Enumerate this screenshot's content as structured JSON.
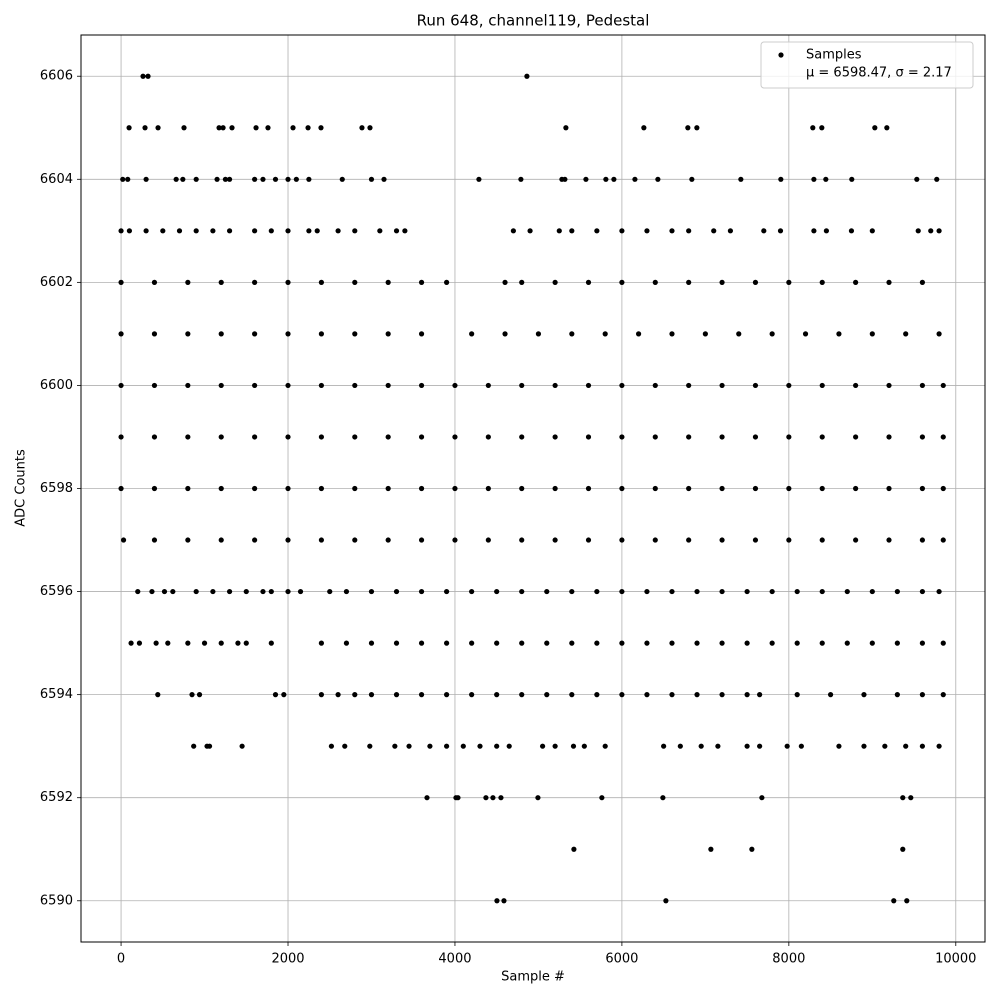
{
  "chart_data": {
    "type": "scatter",
    "title": "Run 648, channel119, Pedestal",
    "xlabel": "Sample #",
    "ylabel": "ADC Counts",
    "x": [
      263,
      323,
      4862,
      96,
      287,
      443,
      754,
      1174,
      1222,
      1329,
      1617,
      1760,
      2060,
      2240,
      2395,
      2886,
      2982,
      5329,
      6263,
      6790,
      6898,
      8287,
      8395,
      9030,
      9174,
      20,
      80,
      300,
      660,
      740,
      900,
      1150,
      1250,
      1300,
      1600,
      1700,
      1850,
      2000,
      2100,
      2250,
      2650,
      3000,
      3150,
      4287,
      4790,
      5281,
      5317,
      5569,
      5808,
      5904,
      6156,
      6431,
      6838,
      7425,
      7904,
      8300,
      8443,
      8754,
      9533,
      9772,
      0,
      100,
      300,
      500,
      700,
      900,
      1100,
      1300,
      1600,
      1800,
      2000,
      2250,
      2350,
      2600,
      2800,
      3100,
      3300,
      3400,
      4700,
      4900,
      5250,
      5400,
      5700,
      6000,
      6300,
      6600,
      6800,
      7100,
      7300,
      7700,
      7900,
      8300,
      8450,
      8750,
      9000,
      9550,
      9700,
      9800,
      0,
      400,
      800,
      1200,
      1600,
      2000,
      2400,
      2800,
      3200,
      3600,
      3900,
      4600,
      4800,
      5200,
      5600,
      6000,
      6400,
      6800,
      7200,
      7600,
      8000,
      8400,
      8800,
      9200,
      9600,
      0,
      400,
      800,
      1200,
      1600,
      2000,
      2400,
      2800,
      3200,
      3600,
      4200,
      4600,
      5000,
      5400,
      5800,
      6200,
      6600,
      7000,
      7400,
      7800,
      8200,
      8600,
      9000,
      9400,
      9800,
      0,
      400,
      800,
      1200,
      1600,
      2000,
      2400,
      2800,
      3200,
      3600,
      4000,
      4400,
      4800,
      5200,
      5600,
      6000,
      6400,
      6800,
      7200,
      7600,
      8000,
      8400,
      8800,
      9200,
      9600,
      9850,
      0,
      400,
      800,
      1200,
      1600,
      2000,
      2400,
      2800,
      3200,
      3600,
      4000,
      4400,
      4800,
      5200,
      5600,
      6000,
      6400,
      6800,
      7200,
      7600,
      8000,
      8400,
      8800,
      9200,
      9600,
      9850,
      0,
      400,
      800,
      1200,
      1600,
      2000,
      2400,
      2800,
      3200,
      3600,
      4000,
      4400,
      4800,
      5200,
      5600,
      6000,
      6400,
      6800,
      7200,
      7600,
      8000,
      8400,
      8800,
      9200,
      9600,
      9850,
      30,
      400,
      800,
      1200,
      1600,
      2000,
      2400,
      2800,
      3200,
      3600,
      4000,
      4400,
      4800,
      5200,
      5600,
      6000,
      6400,
      6800,
      7200,
      7600,
      8000,
      8400,
      8800,
      9200,
      9600,
      9850,
      200,
      370,
      520,
      620,
      900,
      1100,
      1300,
      1500,
      1700,
      1800,
      2000,
      2150,
      2500,
      2700,
      3000,
      3300,
      3600,
      3900,
      4200,
      4500,
      4800,
      5100,
      5400,
      5700,
      6000,
      6300,
      6600,
      6900,
      7200,
      7500,
      7800,
      8100,
      8400,
      8700,
      9000,
      9300,
      9600,
      9800,
      120,
      220,
      420,
      560,
      800,
      1000,
      1200,
      1400,
      1500,
      1800,
      2400,
      2700,
      3000,
      3300,
      3600,
      3900,
      4200,
      4500,
      4800,
      5100,
      5400,
      5700,
      6000,
      6300,
      6600,
      6900,
      7200,
      7500,
      7800,
      8100,
      8400,
      8700,
      9000,
      9300,
      9600,
      9850,
      440,
      850,
      940,
      1850,
      1950,
      2400,
      2600,
      2800,
      3000,
      3300,
      3600,
      3900,
      4200,
      4500,
      4800,
      5100,
      5400,
      5700,
      6000,
      6300,
      6600,
      6900,
      7200,
      7500,
      7650,
      8100,
      8500,
      8900,
      9300,
      9600,
      9850,
      870,
      1030,
      1060,
      1450,
      2520,
      2680,
      2980,
      3280,
      3450,
      3700,
      3900,
      4100,
      4300,
      4500,
      4650,
      5050,
      5200,
      5420,
      5550,
      5800,
      6500,
      6700,
      6950,
      7150,
      7500,
      7650,
      7980,
      8150,
      8600,
      8900,
      9150,
      9400,
      9600,
      9800,
      3665,
      4012,
      4036,
      4371,
      4455,
      4551,
      4994,
      5760,
      6491,
      7677,
      9365,
      9461,
      5425,
      7066,
      7557,
      9365,
      4503,
      4587,
      6527,
      9257,
      9413
    ],
    "series": [
      {
        "name": "Samples",
        "color": "#000000",
        "values": [
          6606,
          6606,
          6606,
          6605,
          6605,
          6605,
          6605,
          6605,
          6605,
          6605,
          6605,
          6605,
          6605,
          6605,
          6605,
          6605,
          6605,
          6605,
          6605,
          6605,
          6605,
          6605,
          6605,
          6605,
          6605,
          6604,
          6604,
          6604,
          6604,
          6604,
          6604,
          6604,
          6604,
          6604,
          6604,
          6604,
          6604,
          6604,
          6604,
          6604,
          6604,
          6604,
          6604,
          6604,
          6604,
          6604,
          6604,
          6604,
          6604,
          6604,
          6604,
          6604,
          6604,
          6604,
          6604,
          6604,
          6604,
          6604,
          6604,
          6604,
          6603,
          6603,
          6603,
          6603,
          6603,
          6603,
          6603,
          6603,
          6603,
          6603,
          6603,
          6603,
          6603,
          6603,
          6603,
          6603,
          6603,
          6603,
          6603,
          6603,
          6603,
          6603,
          6603,
          6603,
          6603,
          6603,
          6603,
          6603,
          6603,
          6603,
          6603,
          6603,
          6603,
          6603,
          6603,
          6603,
          6603,
          6603,
          6602,
          6602,
          6602,
          6602,
          6602,
          6602,
          6602,
          6602,
          6602,
          6602,
          6602,
          6602,
          6602,
          6602,
          6602,
          6602,
          6602,
          6602,
          6602,
          6602,
          6602,
          6602,
          6602,
          6602,
          6602,
          6601,
          6601,
          6601,
          6601,
          6601,
          6601,
          6601,
          6601,
          6601,
          6601,
          6601,
          6601,
          6601,
          6601,
          6601,
          6601,
          6601,
          6601,
          6601,
          6601,
          6601,
          6601,
          6601,
          6601,
          6601,
          6600,
          6600,
          6600,
          6600,
          6600,
          6600,
          6600,
          6600,
          6600,
          6600,
          6600,
          6600,
          6600,
          6600,
          6600,
          6600,
          6600,
          6600,
          6600,
          6600,
          6600,
          6600,
          6600,
          6600,
          6600,
          6600,
          6599,
          6599,
          6599,
          6599,
          6599,
          6599,
          6599,
          6599,
          6599,
          6599,
          6599,
          6599,
          6599,
          6599,
          6599,
          6599,
          6599,
          6599,
          6599,
          6599,
          6599,
          6599,
          6599,
          6599,
          6599,
          6599,
          6598,
          6598,
          6598,
          6598,
          6598,
          6598,
          6598,
          6598,
          6598,
          6598,
          6598,
          6598,
          6598,
          6598,
          6598,
          6598,
          6598,
          6598,
          6598,
          6598,
          6598,
          6598,
          6598,
          6598,
          6598,
          6598,
          6597,
          6597,
          6597,
          6597,
          6597,
          6597,
          6597,
          6597,
          6597,
          6597,
          6597,
          6597,
          6597,
          6597,
          6597,
          6597,
          6597,
          6597,
          6597,
          6597,
          6597,
          6597,
          6597,
          6597,
          6597,
          6597,
          6596,
          6596,
          6596,
          6596,
          6596,
          6596,
          6596,
          6596,
          6596,
          6596,
          6596,
          6596,
          6596,
          6596,
          6596,
          6596,
          6596,
          6596,
          6596,
          6596,
          6596,
          6596,
          6596,
          6596,
          6596,
          6596,
          6596,
          6596,
          6596,
          6596,
          6596,
          6596,
          6596,
          6596,
          6596,
          6596,
          6596,
          6596,
          6595,
          6595,
          6595,
          6595,
          6595,
          6595,
          6595,
          6595,
          6595,
          6595,
          6595,
          6595,
          6595,
          6595,
          6595,
          6595,
          6595,
          6595,
          6595,
          6595,
          6595,
          6595,
          6595,
          6595,
          6595,
          6595,
          6595,
          6595,
          6595,
          6595,
          6595,
          6595,
          6595,
          6595,
          6595,
          6595,
          6594,
          6594,
          6594,
          6594,
          6594,
          6594,
          6594,
          6594,
          6594,
          6594,
          6594,
          6594,
          6594,
          6594,
          6594,
          6594,
          6594,
          6594,
          6594,
          6594,
          6594,
          6594,
          6594,
          6594,
          6594,
          6594,
          6594,
          6594,
          6594,
          6594,
          6594,
          6593,
          6593,
          6593,
          6593,
          6593,
          6593,
          6593,
          6593,
          6593,
          6593,
          6593,
          6593,
          6593,
          6593,
          6593,
          6593,
          6593,
          6593,
          6593,
          6593,
          6593,
          6593,
          6593,
          6593,
          6593,
          6593,
          6593,
          6593,
          6593,
          6593,
          6593,
          6593,
          6593,
          6593,
          6592,
          6592,
          6592,
          6592,
          6592,
          6592,
          6592,
          6592,
          6592,
          6592,
          6592,
          6592,
          6591,
          6591,
          6591,
          6591,
          6590,
          6590,
          6590,
          6590,
          6590
        ]
      }
    ],
    "legend_text": "μ = 6598.47, σ = 2.17",
    "legend_position": "upper right",
    "xlim": [
      -480,
      10350
    ],
    "xticks": [
      0,
      2000,
      4000,
      6000,
      8000,
      10000
    ],
    "ylim": [
      6589.2,
      6606.8
    ],
    "yticks": [
      6590,
      6592,
      6594,
      6596,
      6598,
      6600,
      6602,
      6604,
      6606
    ],
    "grid": true
  }
}
